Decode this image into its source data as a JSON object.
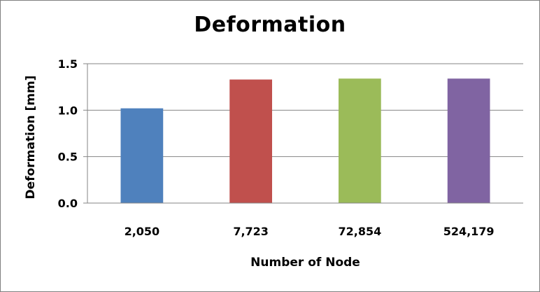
{
  "chart_data": {
    "type": "bar",
    "title": "Deformation",
    "xlabel": "Number of Node",
    "ylabel": "Deformation [mm]",
    "categories": [
      "2,050",
      "7,723",
      "72,854",
      "524,179"
    ],
    "values": [
      1.02,
      1.33,
      1.34,
      1.34
    ],
    "bar_colors": [
      "#4f81bd",
      "#c0504d",
      "#9bbb59",
      "#8064a2"
    ],
    "ylim": [
      0,
      1.5
    ],
    "yticks": [
      0.0,
      0.5,
      1.0,
      1.5
    ],
    "ytick_labels": [
      "0.0",
      "0.5",
      "1.0",
      "1.5"
    ],
    "grid": true,
    "legend": "none"
  }
}
